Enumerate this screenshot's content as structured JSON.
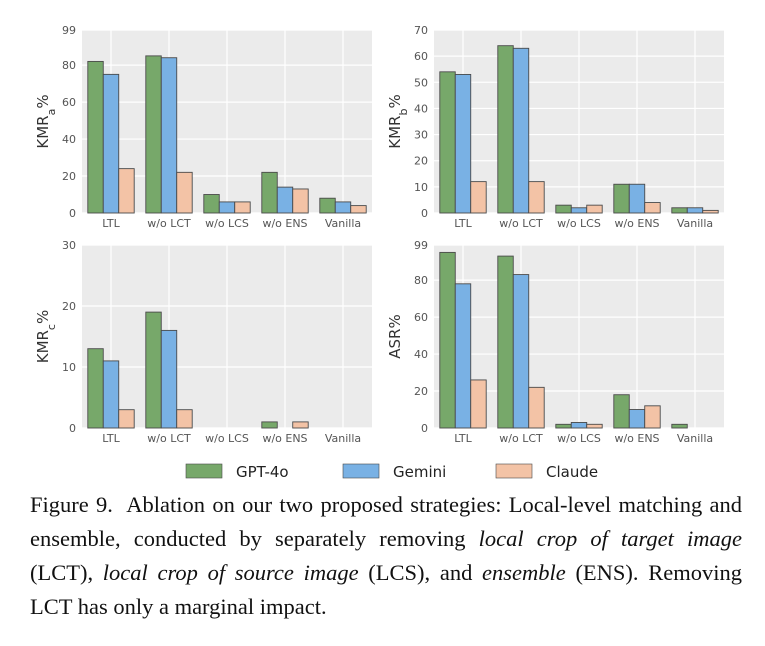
{
  "colors": {
    "GPT-4o": "#77a86a",
    "Gemini": "#79b1e4",
    "Claude": "#f3c3a6",
    "panel_bg": "#ebebeb",
    "grid": "#ffffff"
  },
  "legend": [
    "GPT-4o",
    "Gemini",
    "Claude"
  ],
  "caption": {
    "label": "Figure 9.",
    "t1": "Ablation on our two proposed strategies: Local-level matching and ensemble, conducted by separately removing ",
    "e1": "local crop of target image",
    "t2": " (LCT), ",
    "e2": "local crop of source image",
    "t3": " (LCS), and ",
    "e3": "ensemble",
    "t4": " (ENS). Removing LCT has only a marginal impact."
  },
  "chart_data": [
    {
      "type": "bar",
      "ylabel": "KMR",
      "ylabel_sub": "a",
      "ylabel_suffix": "%",
      "categories": [
        "LTL",
        "w/o LCT",
        "w/o LCS",
        "w/o ENS",
        "Vanilla"
      ],
      "ylim": [
        0,
        99
      ],
      "yticks": [
        0,
        20,
        40,
        60,
        80,
        99
      ],
      "grid": true,
      "series": [
        {
          "name": "GPT-4o",
          "values": [
            82,
            85,
            10,
            22,
            8
          ]
        },
        {
          "name": "Gemini",
          "values": [
            75,
            84,
            6,
            14,
            6
          ]
        },
        {
          "name": "Claude",
          "values": [
            24,
            22,
            6,
            13,
            4
          ]
        }
      ]
    },
    {
      "type": "bar",
      "ylabel": "KMR",
      "ylabel_sub": "b",
      "ylabel_suffix": "%",
      "categories": [
        "LTL",
        "w/o LCT",
        "w/o LCS",
        "w/o ENS",
        "Vanilla"
      ],
      "ylim": [
        0,
        70
      ],
      "yticks": [
        0,
        10,
        20,
        30,
        40,
        50,
        60,
        70
      ],
      "grid": true,
      "series": [
        {
          "name": "GPT-4o",
          "values": [
            54,
            64,
            3,
            11,
            2
          ]
        },
        {
          "name": "Gemini",
          "values": [
            53,
            63,
            2,
            11,
            2
          ]
        },
        {
          "name": "Claude",
          "values": [
            12,
            12,
            3,
            4,
            1
          ]
        }
      ]
    },
    {
      "type": "bar",
      "ylabel": "KMR",
      "ylabel_sub": "c",
      "ylabel_suffix": "%",
      "categories": [
        "LTL",
        "w/o LCT",
        "w/o LCS",
        "w/o ENS",
        "Vanilla"
      ],
      "ylim": [
        0,
        30
      ],
      "yticks": [
        0,
        10,
        20,
        30
      ],
      "grid": true,
      "series": [
        {
          "name": "GPT-4o",
          "values": [
            13,
            19,
            0,
            1,
            0
          ]
        },
        {
          "name": "Gemini",
          "values": [
            11,
            16,
            0,
            0,
            0
          ]
        },
        {
          "name": "Claude",
          "values": [
            3,
            3,
            0,
            1,
            0
          ]
        }
      ]
    },
    {
      "type": "bar",
      "ylabel": "ASR%",
      "ylabel_sub": "",
      "ylabel_suffix": "",
      "categories": [
        "LTL",
        "w/o LCT",
        "w/o LCS",
        "w/o ENS",
        "Vanilla"
      ],
      "ylim": [
        0,
        99
      ],
      "yticks": [
        0,
        20,
        40,
        60,
        80,
        99
      ],
      "grid": true,
      "series": [
        {
          "name": "GPT-4o",
          "values": [
            95,
            93,
            2,
            18,
            2
          ]
        },
        {
          "name": "Gemini",
          "values": [
            78,
            83,
            3,
            10,
            0
          ]
        },
        {
          "name": "Claude",
          "values": [
            26,
            22,
            2,
            12,
            0
          ]
        }
      ]
    }
  ]
}
